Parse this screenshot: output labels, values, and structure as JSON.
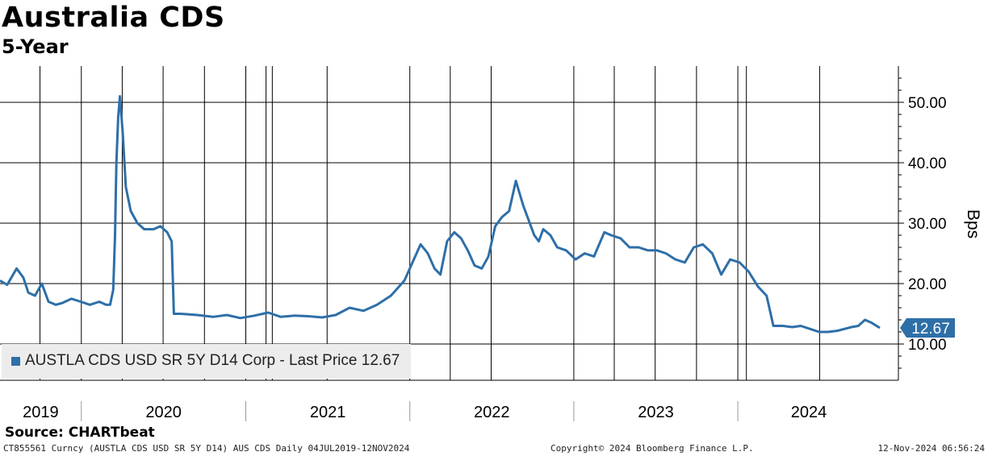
{
  "title": "Australia CDS",
  "subtitle": "5-Year",
  "source": "Source: CHARTbeat",
  "footer": {
    "left": "CT855561 Curncy (AUSTLA CDS USD SR 5Y D14) AUS CDS  Daily 04JUL2019-12NOV2024",
    "middle": "Copyright© 2024 Bloomberg Finance L.P.",
    "right": "12-Nov-2024 06:56:24"
  },
  "legend": {
    "label": "AUSTLA CDS USD SR 5Y D14 Corp - Last Price",
    "value": "12.67"
  },
  "last_price_tag": "12.67",
  "colors": {
    "series": "#2e6fa8",
    "grid": "#000000",
    "legend_bg": "#ececec"
  },
  "chart_data": {
    "type": "line",
    "title": "Australia CDS",
    "subtitle": "5-Year",
    "ylabel": "Bps",
    "ylim": [
      4,
      56
    ],
    "yticks": [
      "10.00",
      "20.00",
      "30.00",
      "40.00",
      "50.00"
    ],
    "xlim": [
      "2019-07-04",
      "2024-11-12"
    ],
    "year_labels": [
      "2019",
      "2020",
      "2021",
      "2022",
      "2023",
      "2024"
    ],
    "grid": true,
    "legend_position": "bottom-left",
    "series": [
      {
        "name": "AUSTLA CDS USD SR 5Y D14 Corp - Last Price",
        "x": [
          "2019-07-04",
          "2019-07-20",
          "2019-08-10",
          "2019-08-25",
          "2019-09-05",
          "2019-09-20",
          "2019-10-05",
          "2019-10-20",
          "2019-11-05",
          "2019-11-20",
          "2019-12-10",
          "2019-12-31",
          "2020-01-20",
          "2020-02-10",
          "2020-02-25",
          "2020-03-05",
          "2020-03-12",
          "2020-03-16",
          "2020-03-19",
          "2020-03-23",
          "2020-03-27",
          "2020-04-02",
          "2020-04-09",
          "2020-04-20",
          "2020-05-05",
          "2020-05-20",
          "2020-06-10",
          "2020-06-25",
          "2020-07-10",
          "2020-07-20",
          "2020-07-25",
          "2020-08-10",
          "2020-09-15",
          "2020-10-20",
          "2020-11-20",
          "2020-12-20",
          "2021-01-20",
          "2021-02-20",
          "2021-03-20",
          "2021-04-20",
          "2021-05-20",
          "2021-06-20",
          "2021-07-20",
          "2021-08-20",
          "2021-09-20",
          "2021-10-20",
          "2021-11-20",
          "2021-12-20",
          "2022-01-10",
          "2022-01-25",
          "2022-02-10",
          "2022-02-25",
          "2022-03-10",
          "2022-03-25",
          "2022-04-10",
          "2022-04-25",
          "2022-05-10",
          "2022-05-25",
          "2022-06-10",
          "2022-06-25",
          "2022-07-10",
          "2022-07-25",
          "2022-08-10",
          "2022-08-25",
          "2022-09-10",
          "2022-09-25",
          "2022-10-05",
          "2022-10-15",
          "2022-10-25",
          "2022-11-10",
          "2022-11-25",
          "2022-12-15",
          "2023-01-05",
          "2023-01-25",
          "2023-02-15",
          "2023-03-10",
          "2023-03-25",
          "2023-04-15",
          "2023-05-05",
          "2023-05-25",
          "2023-06-15",
          "2023-07-05",
          "2023-07-25",
          "2023-08-15",
          "2023-09-05",
          "2023-09-25",
          "2023-10-15",
          "2023-11-05",
          "2023-11-25",
          "2023-12-15",
          "2024-01-05",
          "2024-01-25",
          "2024-02-15",
          "2024-03-05",
          "2024-03-20",
          "2024-04-10",
          "2024-05-01",
          "2024-05-20",
          "2024-06-10",
          "2024-06-30",
          "2024-07-20",
          "2024-08-10",
          "2024-08-25",
          "2024-09-10",
          "2024-09-25",
          "2024-10-10",
          "2024-10-25",
          "2024-11-12"
        ],
        "values": [
          20.5,
          19.8,
          22.5,
          21.0,
          18.5,
          18.0,
          20.0,
          17.0,
          16.5,
          16.8,
          17.5,
          17.0,
          16.5,
          17.0,
          16.5,
          16.5,
          19.0,
          28.0,
          40.0,
          47.5,
          51.0,
          45.0,
          36.0,
          32.0,
          30.0,
          29.0,
          29.0,
          29.5,
          28.5,
          27.0,
          15.0,
          15.0,
          14.8,
          14.5,
          14.8,
          14.3,
          14.7,
          15.2,
          14.5,
          14.7,
          14.6,
          14.4,
          14.8,
          16.0,
          15.5,
          16.5,
          18.0,
          20.5,
          24.0,
          26.5,
          25.0,
          22.5,
          21.5,
          27.0,
          28.5,
          27.5,
          25.5,
          23.0,
          22.5,
          24.5,
          29.5,
          31.0,
          32.0,
          37.0,
          33.0,
          30.0,
          28.0,
          27.0,
          29.0,
          28.0,
          26.0,
          25.5,
          24.0,
          25.0,
          24.5,
          28.5,
          28.0,
          27.5,
          26.0,
          26.0,
          25.5,
          25.5,
          25.0,
          24.0,
          23.5,
          26.0,
          26.5,
          25.0,
          21.5,
          24.0,
          23.5,
          22.0,
          19.5,
          18.0,
          13.0,
          13.0,
          12.8,
          13.0,
          12.5,
          12.0,
          12.0,
          12.2,
          12.5,
          12.8,
          13.0,
          14.0,
          13.5,
          12.67
        ]
      }
    ]
  }
}
